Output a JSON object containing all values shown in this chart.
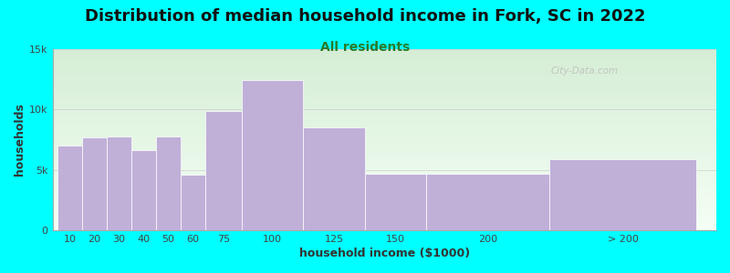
{
  "title": "Distribution of median household income in Fork, SC in 2022",
  "subtitle": "All residents",
  "xlabel": "household income ($1000)",
  "ylabel": "households",
  "background_color": "#00FFFF",
  "bar_color": "#C0B0D8",
  "categories": [
    "10",
    "20",
    "30",
    "40",
    "50",
    "60",
    "75",
    "100",
    "125",
    "150",
    "200",
    "> 200"
  ],
  "values": [
    7000,
    7700,
    7800,
    6600,
    7800,
    4600,
    9900,
    12400,
    8500,
    4700,
    4700,
    5900
  ],
  "bin_lefts": [
    0,
    10,
    20,
    30,
    40,
    50,
    60,
    75,
    100,
    125,
    150,
    200
  ],
  "bin_widths": [
    10,
    10,
    10,
    10,
    10,
    10,
    15,
    25,
    25,
    25,
    50,
    60
  ],
  "xlim_left": -2,
  "xlim_right": 268,
  "ylim": [
    0,
    15000
  ],
  "yticks": [
    0,
    5000,
    10000,
    15000
  ],
  "ytick_labels": [
    "0",
    "5k",
    "10k",
    "15k"
  ],
  "xtick_positions": [
    5,
    15,
    25,
    35,
    45,
    55,
    67.5,
    87.5,
    112.5,
    137.5,
    175,
    230
  ],
  "title_fontsize": 13,
  "subtitle_fontsize": 10,
  "axis_label_fontsize": 9,
  "tick_fontsize": 8,
  "watermark_text": "City-Data.com",
  "grad_top_color": "#d5edd5",
  "grad_bottom_color": "#f0faf0"
}
